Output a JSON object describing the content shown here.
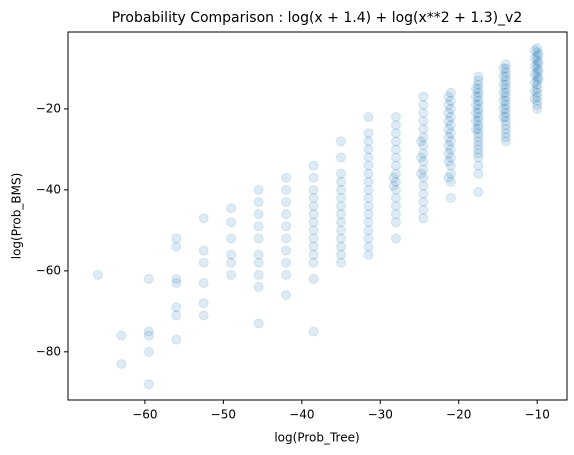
{
  "chart_data": {
    "type": "scatter",
    "title": "Probability Comparison : log(x + 1.4) + log(x**2 + 1.3)_v2",
    "xlabel": "log(Prob_Tree)",
    "ylabel": "log(Prob_BMS)",
    "color": "#1f77b4",
    "alpha": 0.15,
    "xlim": [
      -69.8,
      -6.2
    ],
    "ylim": [
      -91.9,
      -1.0
    ],
    "xticks": [
      {
        "value": -60,
        "label": "−60"
      },
      {
        "value": -50,
        "label": "−50"
      },
      {
        "value": -40,
        "label": "−40"
      },
      {
        "value": -30,
        "label": "−30"
      },
      {
        "value": -20,
        "label": "−20"
      },
      {
        "value": -10,
        "label": "−10"
      }
    ],
    "yticks": [
      {
        "value": -20,
        "label": "−20"
      },
      {
        "value": -40,
        "label": "−40"
      },
      {
        "value": -60,
        "label": "−60"
      },
      {
        "value": -80,
        "label": "−80"
      }
    ],
    "points": [
      [
        -10,
        -5
      ],
      [
        -10,
        -6
      ],
      [
        -10,
        -7
      ],
      [
        -10,
        -8
      ],
      [
        -10,
        -9
      ],
      [
        -10,
        -10
      ],
      [
        -10,
        -11
      ],
      [
        -10,
        -12
      ],
      [
        -10,
        -13
      ],
      [
        -10,
        -14
      ],
      [
        -10,
        -15
      ],
      [
        -10,
        -16
      ],
      [
        -10,
        -17
      ],
      [
        -10,
        -18
      ],
      [
        -10,
        -19
      ],
      [
        -10,
        -20
      ],
      [
        -10.3,
        -5.5
      ],
      [
        -10.3,
        -7.5
      ],
      [
        -10.3,
        -9.5
      ],
      [
        -10.3,
        -11.5
      ],
      [
        -10.3,
        -13.5
      ],
      [
        -10.3,
        -15.5
      ],
      [
        -10.3,
        -17.5
      ],
      [
        -9.8,
        -6.5
      ],
      [
        -9.8,
        -8.5
      ],
      [
        -9.8,
        -10.5
      ],
      [
        -9.8,
        -12.5
      ],
      [
        -14,
        -9
      ],
      [
        -14,
        -10
      ],
      [
        -14,
        -11
      ],
      [
        -14,
        -12
      ],
      [
        -14,
        -13
      ],
      [
        -14,
        -14
      ],
      [
        -14,
        -15
      ],
      [
        -14,
        -16
      ],
      [
        -14,
        -17
      ],
      [
        -14,
        -18
      ],
      [
        -14,
        -19
      ],
      [
        -14,
        -20
      ],
      [
        -14,
        -21
      ],
      [
        -14,
        -22
      ],
      [
        -14,
        -23
      ],
      [
        -14,
        -24
      ],
      [
        -14,
        -25
      ],
      [
        -14,
        -26
      ],
      [
        -14,
        -27
      ],
      [
        -14,
        -28
      ],
      [
        -14.3,
        -10
      ],
      [
        -14.3,
        -12
      ],
      [
        -14.3,
        -14
      ],
      [
        -14.3,
        -16
      ],
      [
        -14.3,
        -18
      ],
      [
        -14.3,
        -20
      ],
      [
        -14.3,
        -22
      ],
      [
        -17.5,
        -12
      ],
      [
        -17.5,
        -13
      ],
      [
        -17.5,
        -14
      ],
      [
        -17.5,
        -15
      ],
      [
        -17.5,
        -16
      ],
      [
        -17.5,
        -17
      ],
      [
        -17.5,
        -18
      ],
      [
        -17.5,
        -19
      ],
      [
        -17.5,
        -20
      ],
      [
        -17.5,
        -21
      ],
      [
        -17.5,
        -22
      ],
      [
        -17.5,
        -23
      ],
      [
        -17.5,
        -24
      ],
      [
        -17.5,
        -25
      ],
      [
        -17.5,
        -26
      ],
      [
        -17.5,
        -27
      ],
      [
        -17.5,
        -28
      ],
      [
        -17.5,
        -29
      ],
      [
        -17.5,
        -30
      ],
      [
        -17.5,
        -31
      ],
      [
        -17.5,
        -32
      ],
      [
        -17.5,
        -34
      ],
      [
        -17.5,
        -36
      ],
      [
        -17.5,
        -40.5
      ],
      [
        -17.8,
        -15
      ],
      [
        -17.8,
        -17
      ],
      [
        -17.8,
        -19
      ],
      [
        -17.8,
        -21
      ],
      [
        -17.8,
        -23
      ],
      [
        -17.8,
        -25
      ],
      [
        -21,
        -16
      ],
      [
        -21,
        -18
      ],
      [
        -21,
        -20
      ],
      [
        -21,
        -22
      ],
      [
        -21,
        -24
      ],
      [
        -21,
        -26
      ],
      [
        -21,
        -28
      ],
      [
        -21,
        -30
      ],
      [
        -21,
        -32
      ],
      [
        -21,
        -34
      ],
      [
        -21,
        -36
      ],
      [
        -21,
        -38
      ],
      [
        -21,
        -42
      ],
      [
        -21.3,
        -17
      ],
      [
        -21.3,
        -19
      ],
      [
        -21.3,
        -21
      ],
      [
        -21.3,
        -23
      ],
      [
        -21.3,
        -25
      ],
      [
        -21.3,
        -27
      ],
      [
        -21.3,
        -29
      ],
      [
        -21.3,
        -31
      ],
      [
        -21.3,
        -33
      ],
      [
        -21.3,
        -37
      ],
      [
        -24.5,
        -17
      ],
      [
        -24.5,
        -19
      ],
      [
        -24.5,
        -21
      ],
      [
        -24.5,
        -23
      ],
      [
        -24.5,
        -25
      ],
      [
        -24.5,
        -27
      ],
      [
        -24.5,
        -29
      ],
      [
        -24.5,
        -31
      ],
      [
        -24.5,
        -33
      ],
      [
        -24.5,
        -35
      ],
      [
        -24.5,
        -37
      ],
      [
        -24.5,
        -39
      ],
      [
        -24.5,
        -41
      ],
      [
        -24.5,
        -43
      ],
      [
        -24.5,
        -45
      ],
      [
        -24.5,
        -47
      ],
      [
        -24.8,
        -28
      ],
      [
        -24.8,
        -32
      ],
      [
        -24.8,
        -36
      ],
      [
        -28,
        -22
      ],
      [
        -28,
        -24
      ],
      [
        -28,
        -26
      ],
      [
        -28,
        -28
      ],
      [
        -28,
        -30
      ],
      [
        -28,
        -32
      ],
      [
        -28,
        -34
      ],
      [
        -28,
        -36
      ],
      [
        -28,
        -38
      ],
      [
        -28,
        -40
      ],
      [
        -28,
        -42
      ],
      [
        -28,
        -44
      ],
      [
        -28,
        -46
      ],
      [
        -28,
        -48
      ],
      [
        -28,
        -52
      ],
      [
        -28.3,
        -37
      ],
      [
        -28.3,
        -39
      ],
      [
        -31.5,
        -22
      ],
      [
        -31.5,
        -26
      ],
      [
        -31.5,
        -28
      ],
      [
        -31.5,
        -30
      ],
      [
        -31.5,
        -32
      ],
      [
        -31.5,
        -34
      ],
      [
        -31.5,
        -36
      ],
      [
        -31.5,
        -38
      ],
      [
        -31.5,
        -40
      ],
      [
        -31.5,
        -42
      ],
      [
        -31.5,
        -44
      ],
      [
        -31.5,
        -46
      ],
      [
        -31.5,
        -48
      ],
      [
        -31.5,
        -50
      ],
      [
        -31.5,
        -52
      ],
      [
        -31.5,
        -54
      ],
      [
        -31.5,
        -56
      ],
      [
        -35,
        -28
      ],
      [
        -35,
        -32
      ],
      [
        -35,
        -36
      ],
      [
        -35,
        -38
      ],
      [
        -35,
        -40
      ],
      [
        -35,
        -42
      ],
      [
        -35,
        -44
      ],
      [
        -35,
        -46
      ],
      [
        -35,
        -48
      ],
      [
        -35,
        -50
      ],
      [
        -35,
        -52
      ],
      [
        -35,
        -54
      ],
      [
        -35,
        -56
      ],
      [
        -35,
        -58
      ],
      [
        -38.5,
        -34
      ],
      [
        -38.5,
        -37
      ],
      [
        -38.5,
        -40
      ],
      [
        -38.5,
        -42
      ],
      [
        -38.5,
        -44
      ],
      [
        -38.5,
        -46
      ],
      [
        -38.5,
        -48
      ],
      [
        -38.5,
        -50
      ],
      [
        -38.5,
        -52
      ],
      [
        -38.5,
        -54
      ],
      [
        -38.5,
        -56
      ],
      [
        -38.5,
        -58
      ],
      [
        -38.5,
        -62
      ],
      [
        -38.5,
        -75
      ],
      [
        -42,
        -37
      ],
      [
        -42,
        -40
      ],
      [
        -42,
        -43
      ],
      [
        -42,
        -46
      ],
      [
        -42,
        -49
      ],
      [
        -42,
        -52
      ],
      [
        -42,
        -55
      ],
      [
        -42,
        -58
      ],
      [
        -42,
        -61
      ],
      [
        -42,
        -66
      ],
      [
        -45.5,
        -40
      ],
      [
        -45.5,
        -43
      ],
      [
        -45.5,
        -46
      ],
      [
        -45.5,
        -49
      ],
      [
        -45.5,
        -52
      ],
      [
        -45.5,
        -56
      ],
      [
        -45.5,
        -58
      ],
      [
        -45.5,
        -61
      ],
      [
        -45.5,
        -64
      ],
      [
        -45.5,
        -73
      ],
      [
        -49,
        -44.5
      ],
      [
        -49,
        -48
      ],
      [
        -49,
        -52
      ],
      [
        -49,
        -56
      ],
      [
        -49,
        -58
      ],
      [
        -49,
        -61
      ],
      [
        -52.5,
        -47
      ],
      [
        -52.5,
        -55
      ],
      [
        -52.5,
        -58
      ],
      [
        -52.5,
        -63
      ],
      [
        -52.5,
        -68
      ],
      [
        -52.5,
        -71
      ],
      [
        -56,
        -52
      ],
      [
        -56,
        -54
      ],
      [
        -56,
        -62
      ],
      [
        -56,
        -63
      ],
      [
        -56,
        -69
      ],
      [
        -56,
        -71
      ],
      [
        -56,
        -77
      ],
      [
        -59.5,
        -62
      ],
      [
        -59.5,
        -75
      ],
      [
        -59.5,
        -76
      ],
      [
        -59.5,
        -80
      ],
      [
        -59.5,
        -88
      ],
      [
        -63,
        -76
      ],
      [
        -63,
        -83
      ],
      [
        -66,
        -61
      ]
    ]
  }
}
